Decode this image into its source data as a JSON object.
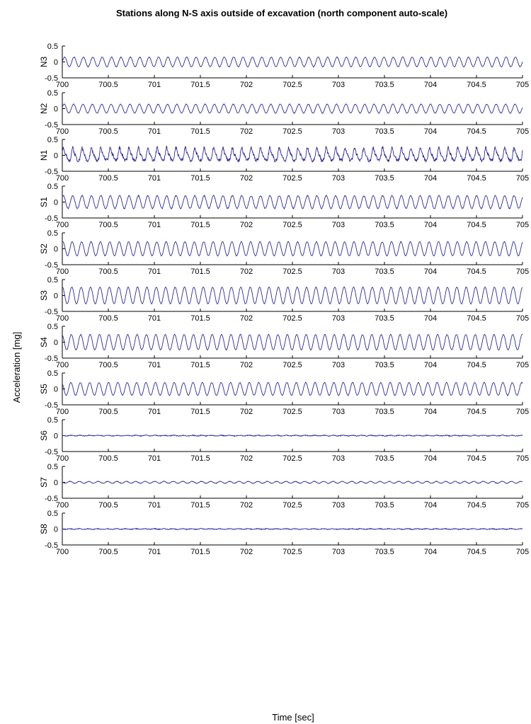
{
  "chart_data": {
    "type": "line",
    "title": "Stations along N-S axis outside of excavation (north component auto-scale)",
    "xlabel": "Time [sec]",
    "ylabel": "Acceleration [mg]",
    "xlim": [
      700,
      705
    ],
    "ylim": [
      -0.5,
      0.5
    ],
    "x_ticks": [
      "700",
      "700.5",
      "701",
      "701.5",
      "702",
      "702.5",
      "703",
      "703.5",
      "704",
      "704.5",
      "705"
    ],
    "y_ticks": [
      "0.5",
      "0",
      "-0.5"
    ],
    "line_color": "#2b2b9a",
    "grid": false,
    "panels": [
      {
        "label": "N3",
        "amplitude": 0.15,
        "cycles": 49,
        "phase": 0.0,
        "noise": 0.01
      },
      {
        "label": "N2",
        "amplitude": 0.14,
        "cycles": 49,
        "phase": 0.3,
        "noise": 0.01
      },
      {
        "label": "N1",
        "amplitude": 0.18,
        "cycles": 49,
        "phase": 0.6,
        "noise": 0.05
      },
      {
        "label": "S1",
        "amplitude": 0.2,
        "cycles": 49,
        "phase": 0.9,
        "noise": 0.015
      },
      {
        "label": "S2",
        "amplitude": 0.22,
        "cycles": 49,
        "phase": 1.2,
        "noise": 0.01
      },
      {
        "label": "S3",
        "amplitude": 0.26,
        "cycles": 49,
        "phase": 1.5,
        "noise": 0.01
      },
      {
        "label": "S4",
        "amplitude": 0.24,
        "cycles": 49,
        "phase": 1.8,
        "noise": 0.01
      },
      {
        "label": "S5",
        "amplitude": 0.2,
        "cycles": 49,
        "phase": 2.1,
        "noise": 0.01
      },
      {
        "label": "S6",
        "amplitude": 0.01,
        "cycles": 49,
        "phase": 2.4,
        "noise": 0.012
      },
      {
        "label": "S7",
        "amplitude": 0.03,
        "cycles": 49,
        "phase": 2.7,
        "noise": 0.008
      },
      {
        "label": "S8",
        "amplitude": 0.01,
        "cycles": 49,
        "phase": 3.0,
        "noise": 0.012
      }
    ]
  }
}
